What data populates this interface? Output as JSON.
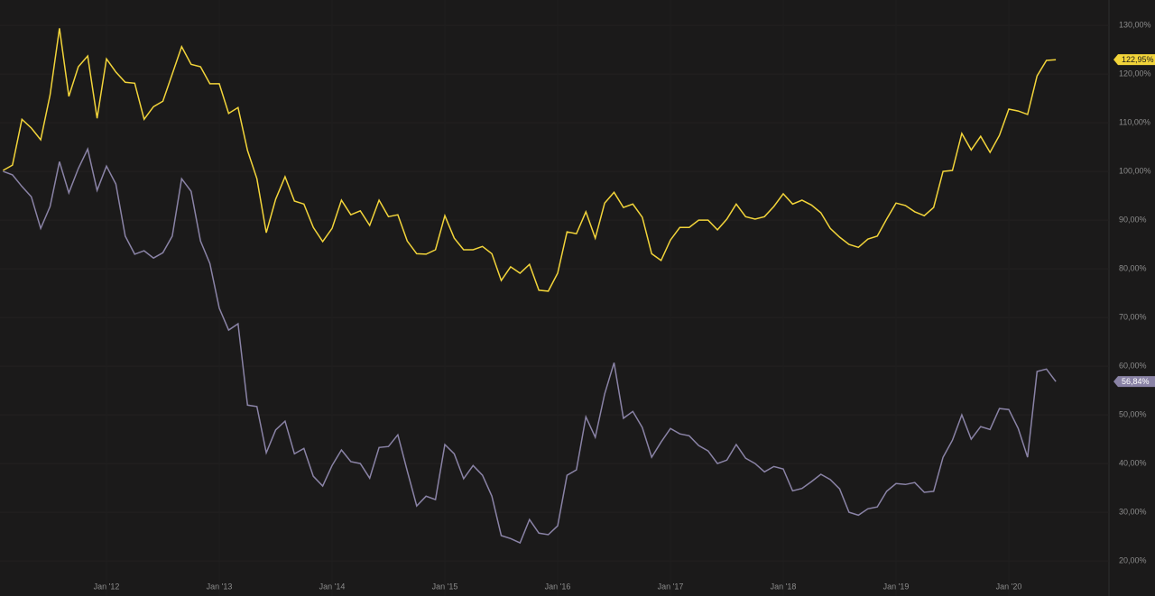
{
  "chart_data": {
    "type": "line",
    "x": [
      "2011-02",
      "2011-03",
      "2011-04",
      "2011-05",
      "2011-06",
      "2011-07",
      "2011-08",
      "2011-09",
      "2011-10",
      "2011-11",
      "2011-12",
      "2012-01",
      "2012-02",
      "2012-03",
      "2012-04",
      "2012-05",
      "2012-06",
      "2012-07",
      "2012-08",
      "2012-09",
      "2012-10",
      "2012-11",
      "2012-12",
      "2013-01",
      "2013-02",
      "2013-03",
      "2013-04",
      "2013-05",
      "2013-06",
      "2013-07",
      "2013-08",
      "2013-09",
      "2013-10",
      "2013-11",
      "2013-12",
      "2014-01",
      "2014-02",
      "2014-03",
      "2014-04",
      "2014-05",
      "2014-06",
      "2014-07",
      "2014-08",
      "2014-09",
      "2014-10",
      "2014-11",
      "2014-12",
      "2015-01",
      "2015-02",
      "2015-03",
      "2015-04",
      "2015-05",
      "2015-06",
      "2015-07",
      "2015-08",
      "2015-09",
      "2015-10",
      "2015-11",
      "2015-12",
      "2016-01",
      "2016-02",
      "2016-03",
      "2016-04",
      "2016-05",
      "2016-06",
      "2016-07",
      "2016-08",
      "2016-09",
      "2016-10",
      "2016-11",
      "2016-12",
      "2017-01",
      "2017-02",
      "2017-03",
      "2017-04",
      "2017-05",
      "2017-06",
      "2017-07",
      "2017-08",
      "2017-09",
      "2017-10",
      "2017-11",
      "2017-12",
      "2018-01",
      "2018-02",
      "2018-03",
      "2018-04",
      "2018-05",
      "2018-06",
      "2018-07",
      "2018-08",
      "2018-09",
      "2018-10",
      "2018-11",
      "2018-12",
      "2019-01",
      "2019-02",
      "2019-03",
      "2019-04",
      "2019-05",
      "2019-06",
      "2019-07",
      "2019-08",
      "2019-09",
      "2019-10",
      "2019-11",
      "2019-12",
      "2020-01",
      "2020-02",
      "2020-03",
      "2020-04",
      "2020-05",
      "2020-06"
    ],
    "series": [
      {
        "color": "#f2d43a",
        "values": [
          100.2,
          101.3,
          110.7,
          108.9,
          106.5,
          115.7,
          129.4,
          115.4,
          121.5,
          123.7,
          110.9,
          123.1,
          120.4,
          118.3,
          118.1,
          110.7,
          113.3,
          114.4,
          120.0,
          125.6,
          122.0,
          121.5,
          118.0,
          118.0,
          111.9,
          113.1,
          104.3,
          98.5,
          87.4,
          94.3,
          98.9,
          93.9,
          93.3,
          88.5,
          85.6,
          88.3,
          94.1,
          91.1,
          91.9,
          88.9,
          94.1,
          90.7,
          91.1,
          85.7,
          83.1,
          83.0,
          83.9,
          90.9,
          86.3,
          83.9,
          83.9,
          84.6,
          83.1,
          77.6,
          80.4,
          79.1,
          80.9,
          75.6,
          75.4,
          79.1,
          87.6,
          87.2,
          91.7,
          86.3,
          93.5,
          95.7,
          92.6,
          93.3,
          90.6,
          83.1,
          81.7,
          85.9,
          88.5,
          88.5,
          90.0,
          90.0,
          88.0,
          90.2,
          93.3,
          90.7,
          90.2,
          90.7,
          92.8,
          95.4,
          93.3,
          94.1,
          93.1,
          91.5,
          88.3,
          86.5,
          85.0,
          84.4,
          86.1,
          86.7,
          90.2,
          93.5,
          93.0,
          91.7,
          90.9,
          92.6,
          100.0,
          100.2,
          107.8,
          104.4,
          107.2,
          103.9,
          107.4,
          112.8,
          112.4,
          111.7,
          119.6,
          122.8,
          122.95
        ],
        "value_labels": [
          null,
          null,
          null,
          null,
          null,
          null,
          null,
          null,
          null,
          null,
          null,
          null,
          null,
          null,
          null,
          null,
          null,
          null,
          null,
          null,
          null,
          null,
          null,
          null,
          null,
          null,
          null,
          null,
          null,
          null,
          null,
          null,
          null,
          null,
          null,
          null,
          null,
          null,
          null,
          null,
          null,
          null,
          null,
          null,
          null,
          null,
          null,
          null,
          null,
          null,
          null,
          null,
          null,
          null,
          null,
          null,
          null,
          null,
          null,
          null,
          null,
          null,
          null,
          null,
          null,
          null,
          null,
          null,
          null,
          null,
          null,
          null,
          null,
          null,
          null,
          null,
          null,
          null,
          null,
          null,
          null,
          null,
          null,
          null,
          null,
          null,
          null,
          null,
          null,
          null,
          null,
          null,
          null,
          null,
          null,
          null,
          null,
          null,
          null,
          null,
          null,
          null,
          null,
          null,
          null,
          null,
          null,
          null,
          null,
          null,
          null,
          null,
          "122,95%"
        ]
      },
      {
        "color": "#8a83a6",
        "values": [
          100.0,
          99.3,
          96.9,
          94.8,
          88.3,
          92.8,
          102.0,
          95.6,
          100.6,
          104.6,
          96.1,
          101.1,
          97.4,
          86.7,
          83.0,
          83.7,
          82.2,
          83.3,
          86.7,
          98.5,
          95.9,
          85.7,
          81.1,
          71.9,
          67.4,
          68.7,
          52.0,
          51.7,
          42.2,
          46.9,
          48.7,
          42.0,
          43.1,
          37.4,
          35.4,
          39.6,
          42.8,
          40.4,
          40.0,
          37.0,
          43.3,
          43.5,
          45.9,
          38.5,
          31.3,
          33.3,
          32.6,
          43.9,
          42.0,
          36.9,
          39.6,
          37.6,
          33.3,
          25.2,
          24.6,
          23.7,
          28.5,
          25.7,
          25.4,
          27.2,
          37.6,
          38.7,
          49.6,
          45.4,
          54.3,
          60.7,
          49.3,
          50.7,
          47.4,
          41.3,
          44.4,
          47.2,
          46.1,
          45.7,
          43.7,
          42.6,
          40.0,
          40.7,
          43.9,
          41.1,
          40.0,
          38.3,
          39.4,
          38.9,
          34.4,
          34.9,
          36.3,
          37.8,
          36.7,
          34.8,
          30.0,
          29.4,
          30.7,
          31.1,
          34.3,
          35.9,
          35.7,
          36.1,
          34.1,
          34.3,
          41.3,
          44.8,
          50.0,
          45.0,
          47.6,
          47.0,
          51.3,
          51.1,
          47.2,
          41.3,
          58.9,
          59.4,
          56.84
        ],
        "value_labels": [
          null,
          null,
          null,
          null,
          null,
          null,
          null,
          null,
          null,
          null,
          null,
          null,
          null,
          null,
          null,
          null,
          null,
          null,
          null,
          null,
          null,
          null,
          null,
          null,
          null,
          null,
          null,
          null,
          null,
          null,
          null,
          null,
          null,
          null,
          null,
          null,
          null,
          null,
          null,
          null,
          null,
          null,
          null,
          null,
          null,
          null,
          null,
          null,
          null,
          null,
          null,
          null,
          null,
          null,
          null,
          null,
          null,
          null,
          null,
          null,
          null,
          null,
          null,
          null,
          null,
          null,
          null,
          null,
          null,
          null,
          null,
          null,
          null,
          null,
          null,
          null,
          null,
          null,
          null,
          null,
          null,
          null,
          null,
          null,
          null,
          null,
          null,
          null,
          null,
          null,
          null,
          null,
          null,
          null,
          null,
          null,
          null,
          null,
          null,
          null,
          null,
          null,
          null,
          null,
          null,
          null,
          null,
          null,
          null,
          null,
          null,
          null,
          "56,84%"
        ]
      }
    ],
    "xticks": [
      {
        "value": "2012-01",
        "label": "Jan '12"
      },
      {
        "value": "2013-01",
        "label": "Jan '13"
      },
      {
        "value": "2014-01",
        "label": "Jan '14"
      },
      {
        "value": "2015-01",
        "label": "Jan '15"
      },
      {
        "value": "2016-01",
        "label": "Jan '16"
      },
      {
        "value": "2017-01",
        "label": "Jan '17"
      },
      {
        "value": "2018-01",
        "label": "Jan '18"
      },
      {
        "value": "2019-01",
        "label": "Jan '19"
      },
      {
        "value": "2020-01",
        "label": "Jan '20"
      }
    ],
    "ylim": [
      12.8,
      135.2
    ],
    "yticks": [
      {
        "value": 20,
        "label": "20,00%"
      },
      {
        "value": 30,
        "label": "30,00%"
      },
      {
        "value": 40,
        "label": "40,00%"
      },
      {
        "value": 50,
        "label": "50,00%"
      },
      {
        "value": 60,
        "label": "60,00%"
      },
      {
        "value": 70,
        "label": "70,00%"
      },
      {
        "value": 80,
        "label": "80,00%"
      },
      {
        "value": 90,
        "label": "90,00%"
      },
      {
        "value": 100,
        "label": "100,00%"
      },
      {
        "value": 110,
        "label": "110,00%"
      },
      {
        "value": 120,
        "label": "120,00%"
      },
      {
        "value": 130,
        "label": "130,00%"
      }
    ],
    "grid": true
  }
}
